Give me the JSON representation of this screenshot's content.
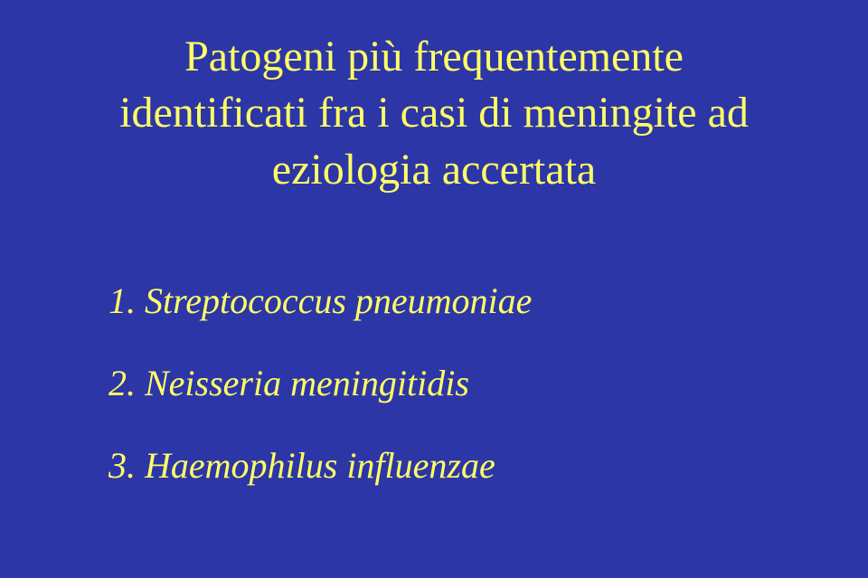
{
  "title": {
    "line1": "Patogeni più frequentemente",
    "line2": "identificati fra i casi di meningite ad",
    "line3": "eziologia accertata"
  },
  "items": {
    "item1": "1. Streptococcus pneumoniae",
    "item2": "2. Neisseria meningitidis",
    "item3": "3. Haemophilus influenzae"
  },
  "colors": {
    "background": "#2d36a7",
    "text": "#ffff66"
  }
}
